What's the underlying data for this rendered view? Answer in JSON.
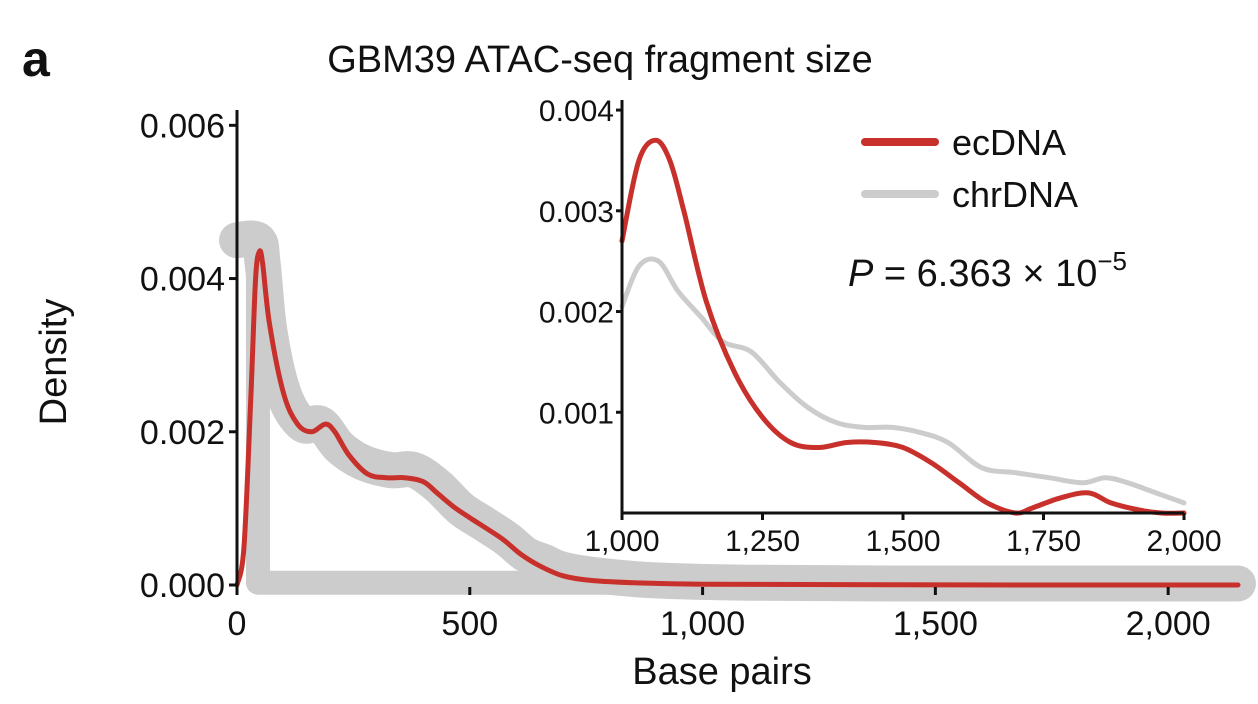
{
  "panel_label": "a",
  "chart_data": [
    {
      "type": "line",
      "title": "GBM39 ATAC-seq fragment size",
      "xlabel": "Base pairs",
      "ylabel": "Density",
      "xlim": [
        0,
        2150
      ],
      "ylim": [
        0,
        0.0062
      ],
      "x_ticks": [
        0,
        500,
        1000,
        1500,
        2000
      ],
      "x_tick_labels": [
        "0",
        "500",
        "1,000",
        "1,500",
        "2,000"
      ],
      "y_ticks": [
        0,
        0.002,
        0.004,
        0.006
      ],
      "y_tick_labels": [
        "0.000",
        "0.002",
        "0.004",
        "0.006"
      ],
      "series": [
        {
          "name": "chrDNA",
          "color": "#cccccc",
          "style": "thick",
          "x": [
            0,
            45,
            55,
            70,
            100,
            140,
            180,
            220,
            270,
            330,
            380,
            430,
            480,
            530,
            580,
            620,
            660,
            700,
            780,
            900,
            1100,
            1400,
            1800,
            2150
          ],
          "y": [
            0.0045,
            0.0045,
            0.0042,
            0.0033,
            0.0025,
            0.0021,
            0.0021,
            0.0018,
            0.0016,
            0.0015,
            0.0015,
            0.0013,
            0.001,
            0.0008,
            0.0006,
            0.0004,
            0.0003,
            0.0002,
            0.00012,
            6e-05,
            3e-05,
            2e-05,
            2e-05,
            2e-05
          ]
        },
        {
          "name": "ecDNA",
          "color": "#c8302b",
          "style": "thin",
          "x": [
            0,
            15,
            30,
            40,
            48,
            55,
            70,
            100,
            130,
            160,
            190,
            210,
            240,
            280,
            320,
            360,
            400,
            430,
            470,
            520,
            570,
            610,
            650,
            700,
            760,
            850,
            1000,
            1300,
            1700,
            2150
          ],
          "y": [
            0.0,
            0.0005,
            0.0025,
            0.004,
            0.00435,
            0.0042,
            0.0034,
            0.0025,
            0.0021,
            0.002,
            0.0021,
            0.002,
            0.0017,
            0.00145,
            0.0014,
            0.0014,
            0.00135,
            0.0012,
            0.001,
            0.0008,
            0.0006,
            0.0004,
            0.00025,
            0.00012,
            6e-05,
            3e-05,
            1e-05,
            5e-06,
            0.0,
            0.0
          ]
        }
      ]
    },
    {
      "type": "line",
      "role": "inset",
      "xlim": [
        1000,
        2000
      ],
      "ylim": [
        0,
        0.0041
      ],
      "x_ticks": [
        1000,
        1250,
        1500,
        1750,
        2000
      ],
      "x_tick_labels": [
        "1,000",
        "1,250",
        "1,500",
        "1,750",
        "2,000"
      ],
      "y_ticks": [
        0.001,
        0.002,
        0.003,
        0.004
      ],
      "y_tick_labels": [
        "0.001",
        "0.002",
        "0.003",
        "0.004"
      ],
      "legend": {
        "position": "top-right",
        "entries": [
          {
            "name": "ecDNA",
            "color": "#c8302b"
          },
          {
            "name": "chrDNA",
            "color": "#cccccc"
          }
        ]
      },
      "annotation": {
        "p_label": "P",
        "p_equals": " = 6.363 × 10",
        "p_exponent": "−5"
      },
      "series": [
        {
          "name": "chrDNA",
          "color": "#cccccc",
          "x": [
            1000,
            1030,
            1065,
            1100,
            1140,
            1180,
            1230,
            1280,
            1330,
            1380,
            1430,
            1480,
            1530,
            1580,
            1640,
            1700,
            1760,
            1820,
            1860,
            1900,
            1950,
            2000
          ],
          "y": [
            0.00205,
            0.00245,
            0.0025,
            0.0022,
            0.00195,
            0.0017,
            0.0016,
            0.0013,
            0.00105,
            0.0009,
            0.00085,
            0.00085,
            0.0008,
            0.0007,
            0.00045,
            0.0004,
            0.00035,
            0.0003,
            0.00035,
            0.0003,
            0.0002,
            0.0001
          ]
        },
        {
          "name": "ecDNA",
          "color": "#c8302b",
          "x": [
            1000,
            1030,
            1060,
            1085,
            1110,
            1150,
            1200,
            1250,
            1300,
            1350,
            1400,
            1450,
            1500,
            1550,
            1600,
            1650,
            1700,
            1730,
            1780,
            1830,
            1870,
            1920,
            1960,
            2000
          ],
          "y": [
            0.0027,
            0.0035,
            0.0037,
            0.0035,
            0.003,
            0.0021,
            0.0014,
            0.00095,
            0.0007,
            0.00065,
            0.0007,
            0.0007,
            0.00065,
            0.0005,
            0.0003,
            0.0001,
            0.0,
            5e-05,
            0.00015,
            0.0002,
            0.0001,
            3e-05,
            0.0,
            0.0
          ]
        }
      ]
    }
  ]
}
